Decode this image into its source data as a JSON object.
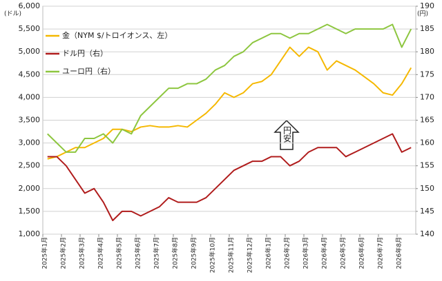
{
  "chart_data": {
    "type": "line",
    "left_unit": "(ドル)",
    "right_unit": "(円)",
    "annotation": "円安",
    "categories": [
      "2025年1月",
      null,
      "2025年2月",
      null,
      "2025年3月",
      null,
      "2025年4月",
      null,
      "2025年5月",
      null,
      "2025年6月",
      null,
      "2025年7月",
      null,
      "2025年8月",
      null,
      "2025年9月",
      null,
      "2025年10月",
      null,
      "2025年11月",
      null,
      "2025年12月",
      null,
      "2026年1月",
      null,
      "2026年2月",
      null,
      "2026年3月",
      null,
      "2026年4月",
      null,
      "2026年5月",
      null,
      "2026年6月",
      null,
      "2026年7月",
      null,
      "2026年8月",
      null
    ],
    "series": [
      {
        "name": "金（NYM $/トロイオンス、左）",
        "color": "#f5b800",
        "axis": "y",
        "values": [
          2650,
          2700,
          2800,
          2900,
          2900,
          3000,
          3100,
          3300,
          3300,
          3250,
          3350,
          3380,
          3350,
          3350,
          3380,
          3350,
          3500,
          3650,
          3850,
          4100,
          4000,
          4100,
          4300,
          4350,
          4500,
          4800,
          5100,
          4900,
          5100,
          5000,
          4600,
          4800,
          4700,
          4600,
          4450,
          4300,
          4100,
          4050,
          4300,
          4650
        ]
      },
      {
        "name": "ドル円（右）",
        "color": "#b01c1c",
        "axis": "y2",
        "values": [
          157,
          157,
          155,
          152,
          149,
          150,
          147,
          143,
          145,
          145,
          144,
          145,
          146,
          148,
          147,
          147,
          147,
          148,
          150,
          152,
          154,
          155,
          156,
          156,
          157,
          157,
          155,
          156,
          158,
          159,
          159,
          159,
          157,
          158,
          159,
          160,
          161,
          162,
          158,
          159
        ]
      },
      {
        "name": "ユーロ円（右）",
        "color": "#8dc63f",
        "axis": "y2",
        "values": [
          162,
          160,
          158,
          158,
          161,
          161,
          162,
          160,
          163,
          162,
          166,
          168,
          170,
          172,
          172,
          173,
          173,
          174,
          176,
          177,
          179,
          180,
          182,
          183,
          184,
          184,
          183,
          184,
          184,
          185,
          186,
          185,
          184,
          185,
          185,
          185,
          185,
          186,
          181,
          185
        ]
      }
    ],
    "ylim": [
      1000,
      6000
    ],
    "yticks": [
      {
        "value": 1000,
        "label": "1,000"
      },
      {
        "value": 1500,
        "label": "1,500"
      },
      {
        "value": 2000,
        "label": "2,000"
      },
      {
        "value": 2500,
        "label": "2,500"
      },
      {
        "value": 3000,
        "label": "3,000"
      },
      {
        "value": 3500,
        "label": "3,500"
      },
      {
        "value": 4000,
        "label": "4,000"
      },
      {
        "value": 4500,
        "label": "4,500"
      },
      {
        "value": 5000,
        "label": "5,000"
      },
      {
        "value": 5500,
        "label": "5,500"
      },
      {
        "value": 6000,
        "label": "6,000"
      }
    ],
    "y2lim": [
      140,
      190
    ],
    "y2ticks": [
      140,
      145,
      150,
      155,
      160,
      165,
      170,
      175,
      180,
      185,
      190
    ],
    "grid": true,
    "legend": "upper left"
  }
}
